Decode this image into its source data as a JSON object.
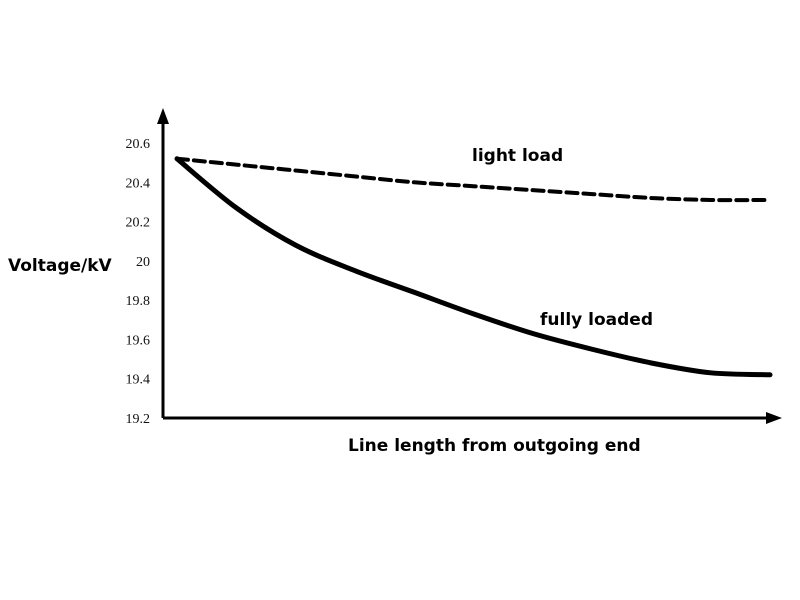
{
  "chart_data": {
    "type": "line",
    "title": "",
    "xlabel": "Line length from outgoing end",
    "ylabel": "Voltage/kV",
    "ylim": [
      19.2,
      20.6
    ],
    "yticks": [
      "19.2",
      "19.4",
      "19.6",
      "19.8",
      "20",
      "20.2",
      "20.4",
      "20.6"
    ],
    "grid": false,
    "x": [
      0,
      0.1,
      0.2,
      0.3,
      0.4,
      0.5,
      0.6,
      0.7,
      0.8,
      0.9,
      1.0
    ],
    "series": [
      {
        "name": "light load",
        "style": "dashed",
        "color": "#000000",
        "values": [
          20.52,
          20.49,
          20.46,
          20.43,
          20.4,
          20.38,
          20.36,
          20.34,
          20.32,
          20.31,
          20.31
        ]
      },
      {
        "name": "fully loaded",
        "style": "solid",
        "color": "#000000",
        "values": [
          20.52,
          20.27,
          20.08,
          19.95,
          19.84,
          19.73,
          19.63,
          19.55,
          19.48,
          19.43,
          19.42
        ]
      }
    ]
  }
}
